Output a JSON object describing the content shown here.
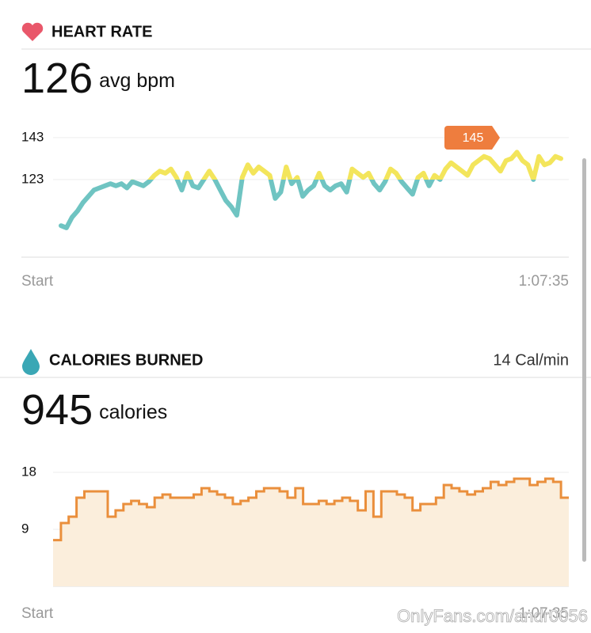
{
  "chart_data": [
    {
      "type": "line",
      "title": "HEART RATE",
      "headline": 126,
      "unit": "avg bpm",
      "values": [
        101,
        100,
        105,
        108,
        112,
        115,
        118,
        119,
        120,
        121,
        120,
        121,
        119,
        122,
        121,
        120,
        122,
        125,
        127,
        126,
        128,
        124,
        118,
        126,
        120,
        119,
        123,
        127,
        123,
        118,
        113,
        110,
        106,
        124,
        130,
        126,
        129,
        127,
        125,
        114,
        117,
        129,
        121,
        124,
        115,
        118,
        120,
        126,
        120,
        118,
        120,
        121,
        117,
        128,
        126,
        124,
        126,
        121,
        118,
        122,
        128,
        126,
        122,
        119,
        116,
        124,
        126,
        120,
        125,
        123,
        128,
        131,
        129,
        127,
        125,
        130,
        132,
        134,
        133,
        130,
        127,
        132,
        133,
        136,
        132,
        130,
        123,
        134,
        130,
        131,
        134,
        133
      ],
      "ylim": [
        86,
        152
      ],
      "yticks": [
        143,
        123
      ],
      "x_labels": [
        "Start",
        "1:07:35"
      ],
      "color_threshold": 123,
      "color_above": "#f3e55b",
      "color_below": "#6fc4c2",
      "annotation": 145,
      "annotation_color": "#ee7d3e"
    },
    {
      "type": "step-area",
      "title": "CALORIES BURNED",
      "rate": "14 Cal/min",
      "headline": 945,
      "unit": "calories",
      "values": [
        7.3,
        10,
        11,
        14,
        15,
        15,
        15,
        11,
        12,
        13,
        13.5,
        13,
        12.5,
        14,
        14.5,
        14,
        14,
        14,
        14.5,
        15.5,
        15,
        14.5,
        14,
        13,
        13.5,
        14,
        15,
        15.5,
        15.5,
        15,
        14,
        15.5,
        13,
        13,
        13.5,
        13,
        13.5,
        14,
        13.5,
        12,
        15,
        11,
        15,
        15,
        14.5,
        14,
        12,
        13,
        13,
        14,
        16,
        15.5,
        15,
        14.5,
        15,
        15.5,
        16.5,
        16,
        16.5,
        17,
        17,
        16,
        16.5,
        17,
        16.5,
        14
      ],
      "ylim": [
        0,
        20
      ],
      "yticks": [
        18,
        9
      ],
      "x_labels": [
        "Start",
        "1:07:35"
      ],
      "color": "#ea8f3c",
      "fill": "#fbeedc"
    }
  ],
  "watermark": "OnlyFans.com/andr0056"
}
